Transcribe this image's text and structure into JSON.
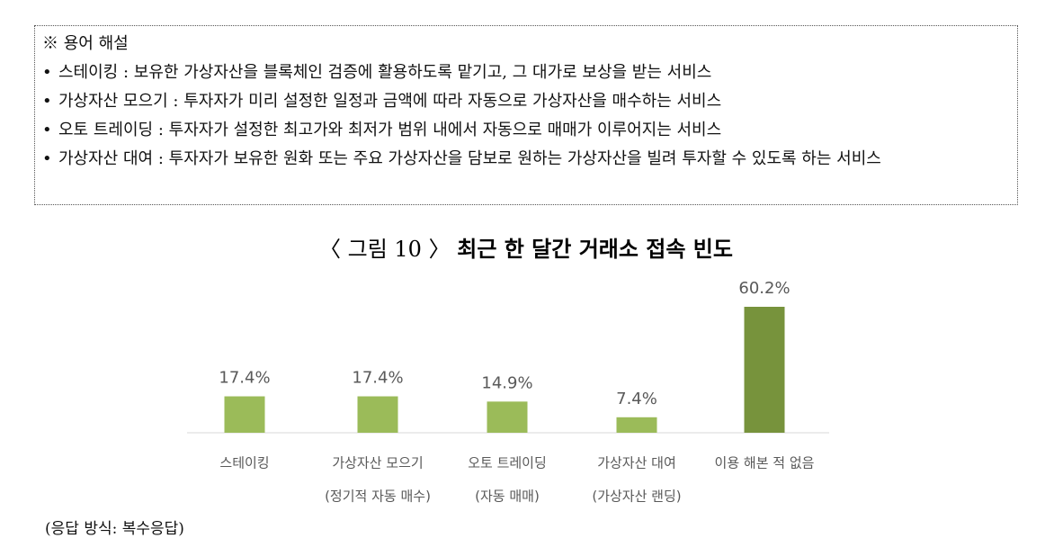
{
  "glossary": {
    "heading": "※ 용어 해설",
    "bullet": "•",
    "separator": ":",
    "items": [
      {
        "term": "스테이킹",
        "definition": "보유한 가상자산을 블록체인 검증에 활용하도록 맡기고, 그 대가로 보상을 받는 서비스"
      },
      {
        "term": "가상자산 모으기",
        "definition": "투자자가 미리 설정한 일정과 금액에 따라 자동으로 가상자산을 매수하는 서비스"
      },
      {
        "term": "오토 트레이딩",
        "definition": "투자자가 설정한 최고가와 최저가 범위 내에서 자동으로 매매가 이루어지는 서비스"
      },
      {
        "term": "가상자산 대여",
        "definition": "투자자가 보유한 원화 또는 주요 가상자산을 담보로 원하는 가상자산을 빌려 투자할 수 있도록 하는 서비스"
      }
    ]
  },
  "chart_data": {
    "type": "bar",
    "figure_label": "〈 그림 10 〉",
    "title": "최근 한 달간 거래소 접속 빈도",
    "categories": [
      [
        "스테이킹"
      ],
      [
        "가상자산 모으기",
        "(정기적 자동 매수)"
      ],
      [
        "오토 트레이딩",
        "(자동 매매)"
      ],
      [
        "가상자산 대여",
        "(가상자산 랜딩)"
      ],
      [
        "이용 해본 적 없음"
      ]
    ],
    "values": [
      17.4,
      17.4,
      14.9,
      7.4,
      60.2
    ],
    "value_labels": [
      "17.4%",
      "17.4%",
      "14.9%",
      "7.4%",
      "60.2%"
    ],
    "colors": [
      "#9bbb59",
      "#9bbb59",
      "#9bbb59",
      "#9bbb59",
      "#77933c"
    ]
  },
  "note": "(응답 방식: 복수응답)"
}
